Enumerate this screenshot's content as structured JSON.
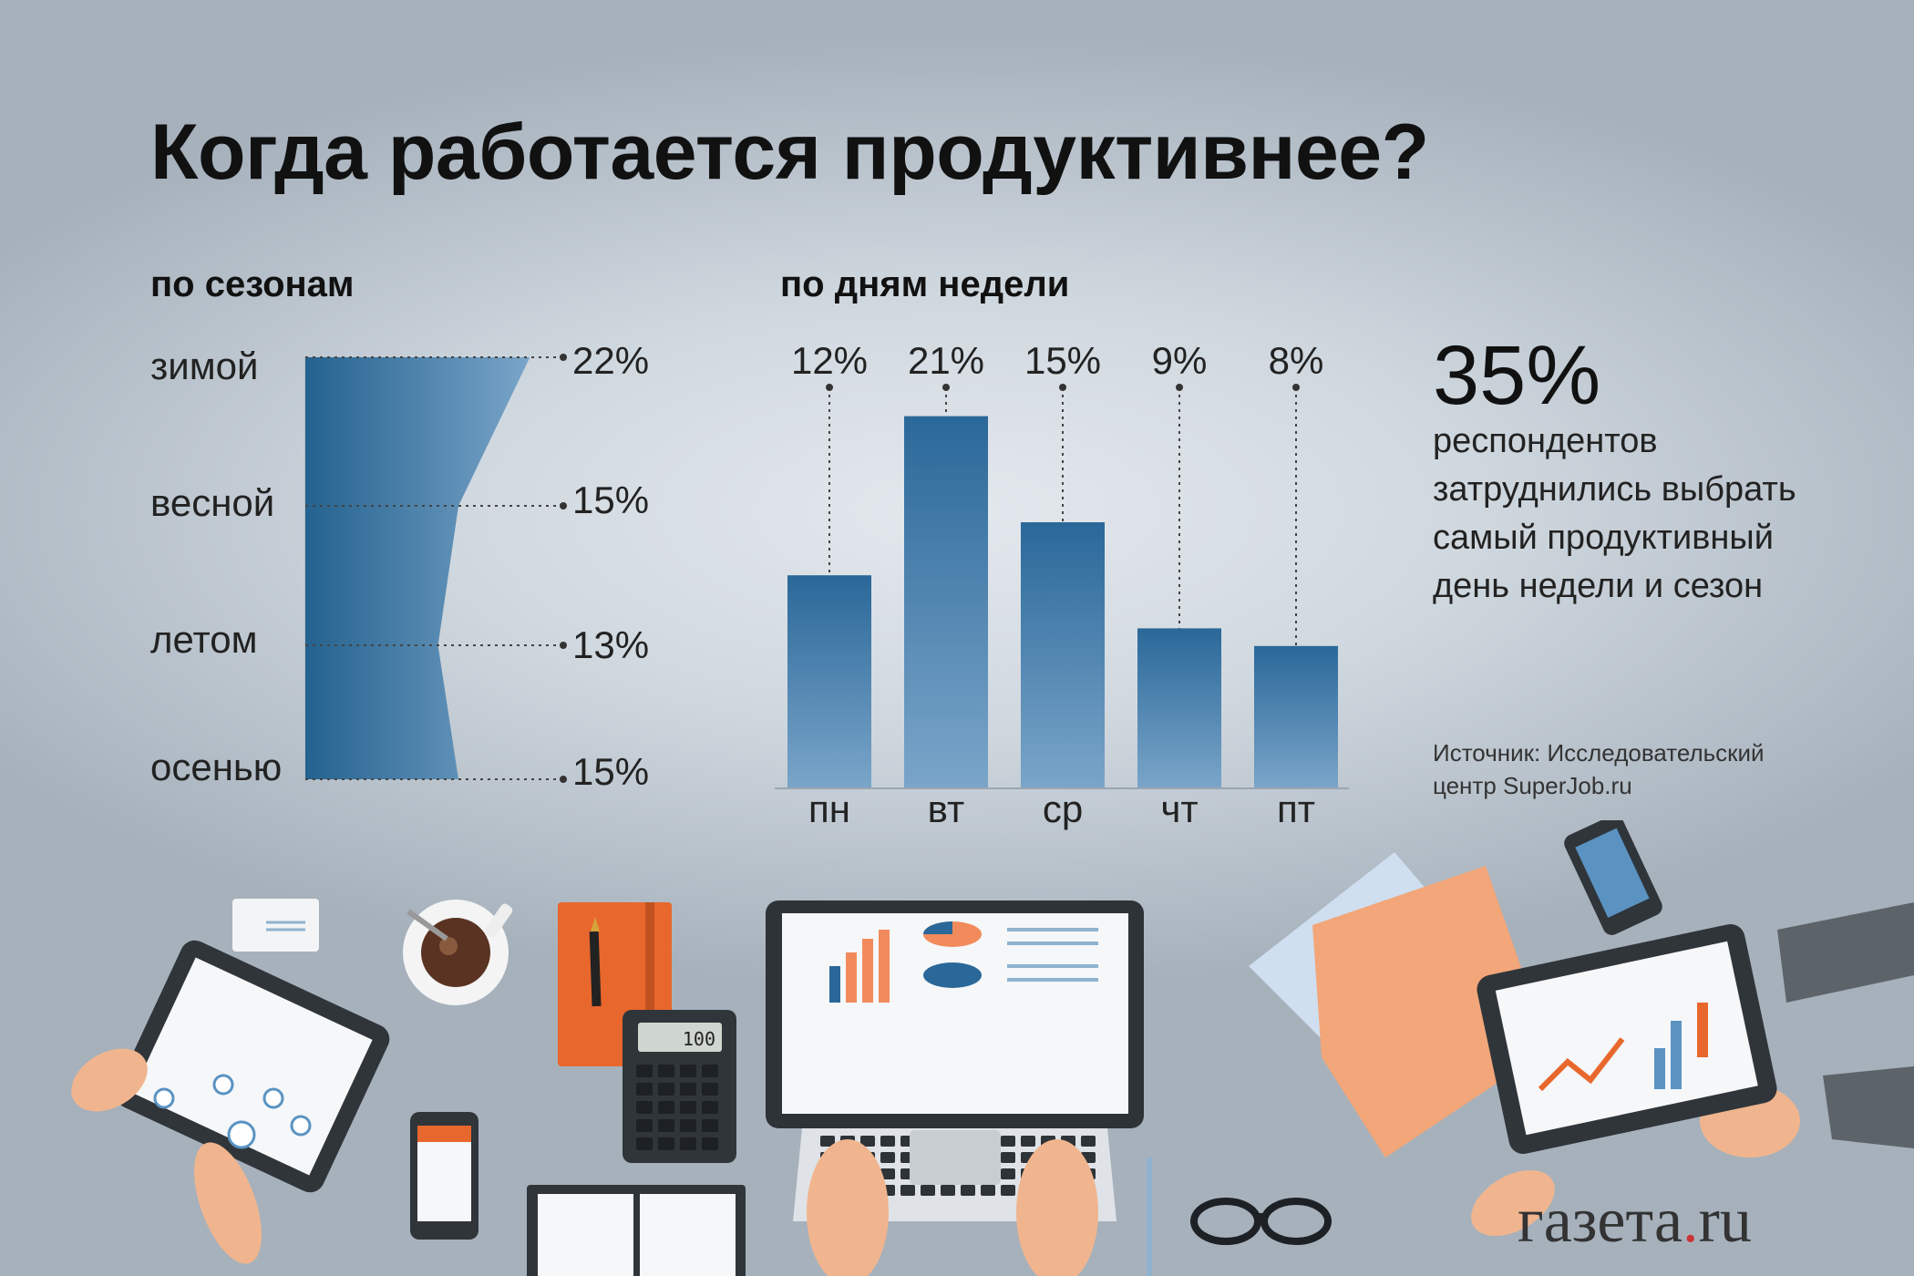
{
  "title": "Когда работается продуктивнее?",
  "chart_data": [
    {
      "type": "area",
      "title": "по сезонам",
      "categories": [
        "зимой",
        "весной",
        "летом",
        "осенью"
      ],
      "value_labels": [
        "22%",
        "15%",
        "13%",
        "15%"
      ],
      "values": [
        22,
        15,
        13,
        15
      ],
      "color": "#2c6d9c"
    },
    {
      "type": "bar",
      "title": "по дням недели",
      "categories": [
        "пн",
        "вт",
        "ср",
        "чт",
        "пт"
      ],
      "value_labels": [
        "12%",
        "21%",
        "15%",
        "9%",
        "8%"
      ],
      "values": [
        12,
        21,
        15,
        9,
        8
      ],
      "color": "#2c6d9c"
    }
  ],
  "note": {
    "number": "35%",
    "lines": [
      "респондентов",
      "затруднились выбрать",
      "самый продуктивный",
      "день недели и сезон"
    ]
  },
  "source": {
    "line1": "Источник: Исследовательский",
    "line2": "центр SuperJob.ru"
  },
  "logo": {
    "main": "газета",
    "dot": ".",
    "suffix": "ru"
  },
  "illustration": {
    "calculator_display": "100"
  }
}
